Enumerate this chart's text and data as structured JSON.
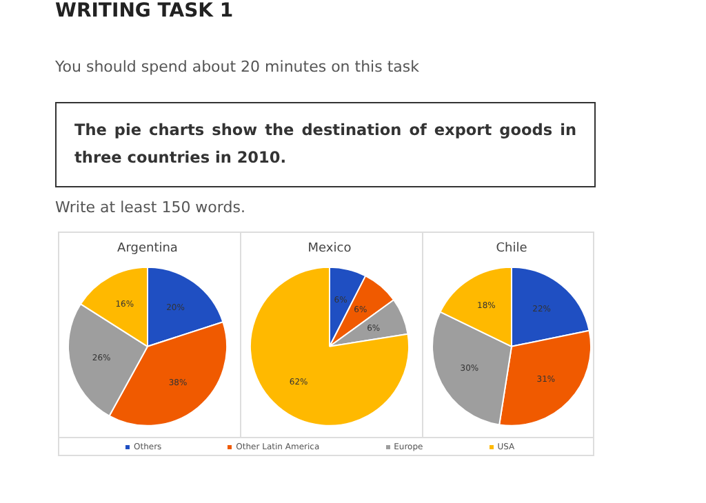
{
  "chart_data": [
    {
      "type": "pie",
      "title": "Argentina",
      "categories": [
        "Others",
        "Other Latin America",
        "Europe",
        "USA"
      ],
      "values": [
        20,
        38,
        26,
        16
      ],
      "colors": [
        "#1f4fc2",
        "#f05a00",
        "#9e9e9e",
        "#ffb900"
      ],
      "value_labels": [
        "20%",
        "38%",
        "26%",
        "16%"
      ],
      "legend": "bottom",
      "annotations": [
        "WRITING TASK 1",
        "You should spend about 20 minutes on this task",
        "The pie charts show the destination of export goods in three countries in 2010.",
        "Write at least 150 words."
      ]
    },
    {
      "type": "pie",
      "title": "Mexico",
      "categories": [
        null,
        null,
        null,
        null
      ],
      "values": [
        6,
        6,
        6,
        62
      ],
      "colors": [
        "#1f4fc2",
        "#f05a00",
        "#9e9e9e",
        "#ffb900"
      ],
      "value_labels": [
        "6%",
        "6%",
        "6%",
        "62%"
      ]
    },
    {
      "type": "pie",
      "title": "Chile",
      "categories": [
        null,
        null,
        null,
        null
      ],
      "values": [
        22,
        31,
        30,
        18
      ],
      "colors": [
        "#1f4fc2",
        "#f05a00",
        "#9e9e9e",
        "#ffb900"
      ],
      "value_labels": [
        "22%",
        "31%",
        "30%",
        "18%"
      ]
    }
  ]
}
